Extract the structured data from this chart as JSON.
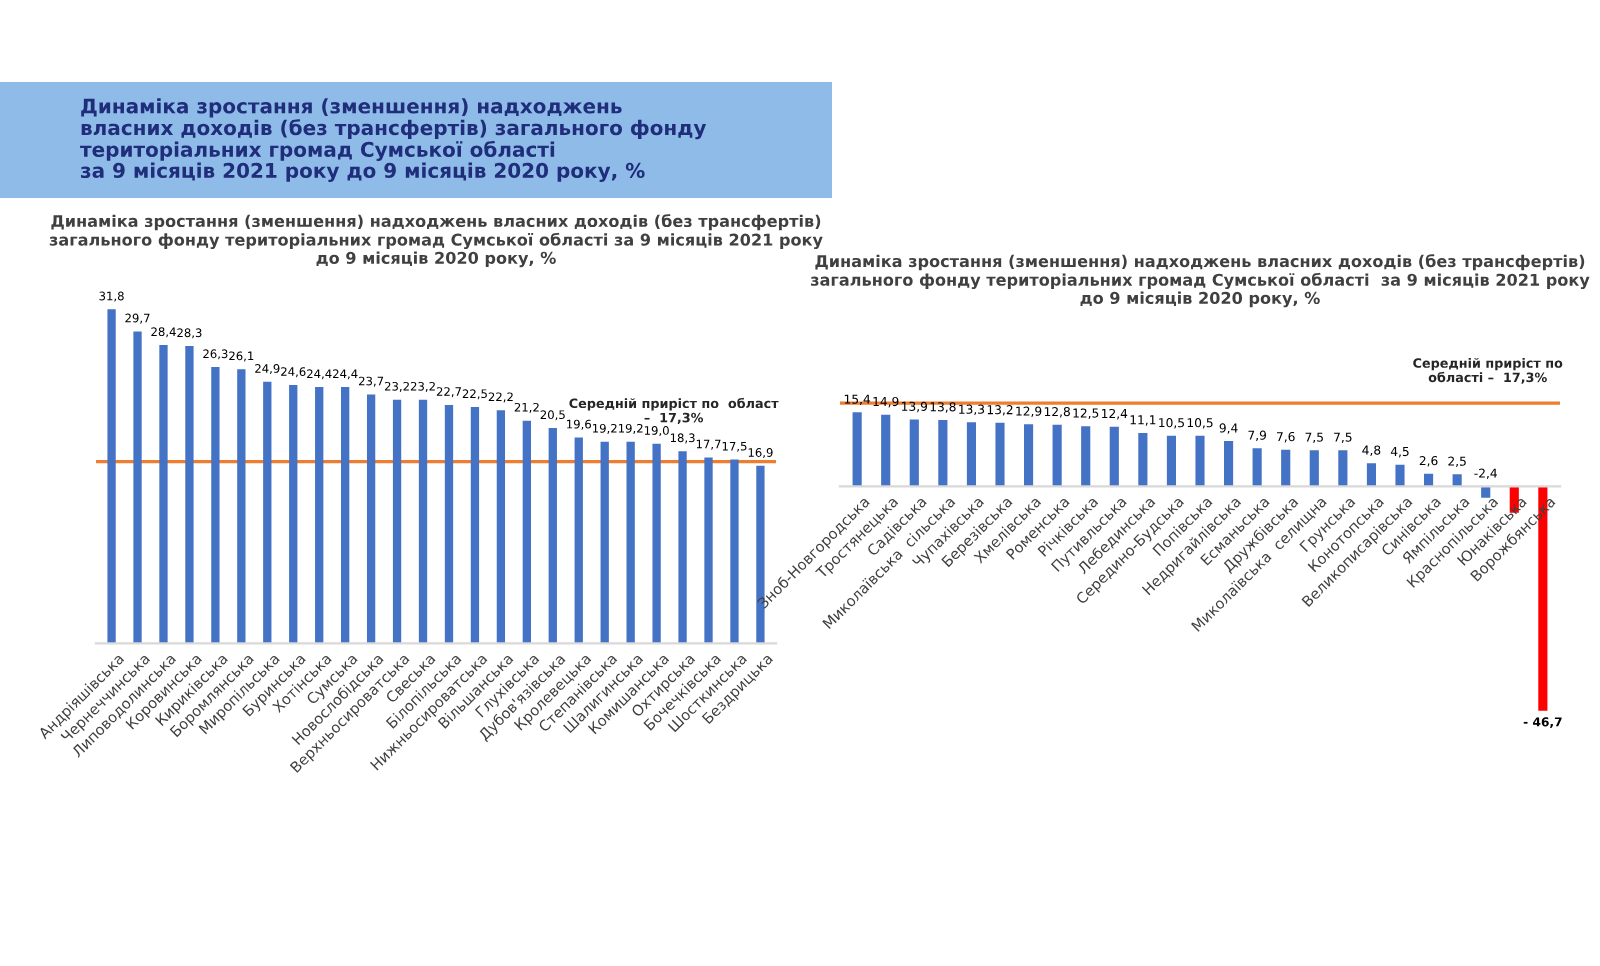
{
  "chart_data": [
    {
      "type": "bar",
      "title": "Динаміка зростання (зменшення) надходжень власних доходів (без трансфертів)\nзагального фонду територіальних громад Сумської області за 9 місяців 2021 року\nдо 9 місяців 2020 року, %",
      "annotations": [
        "Динаміка зростання (зменшення) надходжень\nвласних доходів (без трансфертів) загального фонду\nтериторіальних громад Сумської області\nза 9 місяців 2021 року до 9 місяців 2020 року, %"
      ],
      "categories": [
        "Андріяшівська",
        "Чернеччинська",
        "Липоводолинська",
        "Коровинська",
        "Кириківська",
        "Боромлянська",
        "Миропільська",
        "Буринська",
        "Хотінська",
        "Сумська",
        "Новослобідська",
        "Верхньосироватська",
        "Свеська",
        "Білопільська",
        "Нижньосироватська",
        "Вільшанська",
        "Глухівська",
        "Дубов'язівська",
        "Кролевецька",
        "Степанівська",
        "Шалигинська",
        "Комишанська",
        "Охтирська",
        "Бочечківська",
        "Шосткинська",
        "Бездрицька"
      ],
      "values": [
        31.8,
        29.7,
        28.4,
        28.3,
        26.3,
        26.1,
        24.9,
        24.6,
        24.4,
        24.4,
        23.7,
        23.2,
        23.2,
        22.7,
        22.5,
        22.2,
        21.2,
        20.5,
        19.6,
        19.2,
        19.2,
        19.0,
        18.3,
        17.7,
        17.5,
        16.9
      ],
      "value_labels": [
        "31,8",
        "29,7",
        "28,4",
        "28,3",
        "26,3",
        "26,1",
        "24,9",
        "24,6",
        "24,4",
        "24,4",
        "23,7",
        "23,2",
        "23,2",
        "22,7",
        "22,5",
        "22,2",
        "21,2",
        "20,5",
        "19,6",
        "19,2",
        "19,2",
        "19,0",
        "18,3",
        "17,7",
        "17,5",
        "16,9"
      ],
      "color": "#4472c4",
      "ref_lines": [
        {
          "axis": "y",
          "value": 17.3,
          "label": "Середній приріст по  област\n–  17,3%",
          "color": "#ed7d31"
        }
      ]
    },
    {
      "type": "bar",
      "title": "Динаміка зростання (зменшення) надходжень власних доходів (без трансфертів)\nзагального фонду територіальних громад Сумської області  за 9 місяців 2021 року\nдо 9 місяців 2020 року, %",
      "categories": [
        "Зноб-Новгородська",
        "Тростянецька",
        "Садівська",
        "Миколаївська  сільська",
        "Чупахівська",
        "Березівська",
        "Хмелівська",
        "Роменська",
        "Річківська",
        "Путивльська",
        "Лебединська",
        "Середино-Будська",
        "Попівська",
        "Недригайлівська",
        "Есманьська",
        "Дружбівська",
        "Миколаївська  селищна",
        "Грунська",
        "Конотопська",
        "Великописарівська",
        "Синівська",
        "Ямпільська",
        "Краснопільська",
        "Юнаківська",
        "Ворожбянська"
      ],
      "values": [
        15.4,
        14.9,
        13.9,
        13.8,
        13.3,
        13.2,
        12.9,
        12.8,
        12.5,
        12.4,
        11.1,
        10.5,
        10.5,
        9.4,
        7.9,
        7.6,
        7.5,
        7.5,
        4.8,
        4.5,
        2.6,
        2.5,
        -2.4,
        -5.5,
        -46.7
      ],
      "value_labels": [
        "15,4",
        "14,9",
        "13,9",
        "13,8",
        "13,3",
        "13,2",
        "12,9",
        "12,8",
        "12,5",
        "12,4",
        "11,1",
        "10,5",
        "10,5",
        "9,4",
        "7,9",
        "7,6",
        "7,5",
        "7,5",
        "4,8",
        "4,5",
        "2,6",
        "2,5",
        "-2,4",
        null,
        "- 46,7"
      ],
      "colors": [
        "#4472c4",
        "#4472c4",
        "#4472c4",
        "#4472c4",
        "#4472c4",
        "#4472c4",
        "#4472c4",
        "#4472c4",
        "#4472c4",
        "#4472c4",
        "#4472c4",
        "#4472c4",
        "#4472c4",
        "#4472c4",
        "#4472c4",
        "#4472c4",
        "#4472c4",
        "#4472c4",
        "#4472c4",
        "#4472c4",
        "#4472c4",
        "#4472c4",
        "#4472c4",
        "#ff0000",
        "#ff0000"
      ],
      "ref_lines": [
        {
          "axis": "y",
          "value": 17.3,
          "label": "Середній приріст по\nобласті –  17,3%",
          "color": "#ed7d31"
        }
      ]
    }
  ]
}
